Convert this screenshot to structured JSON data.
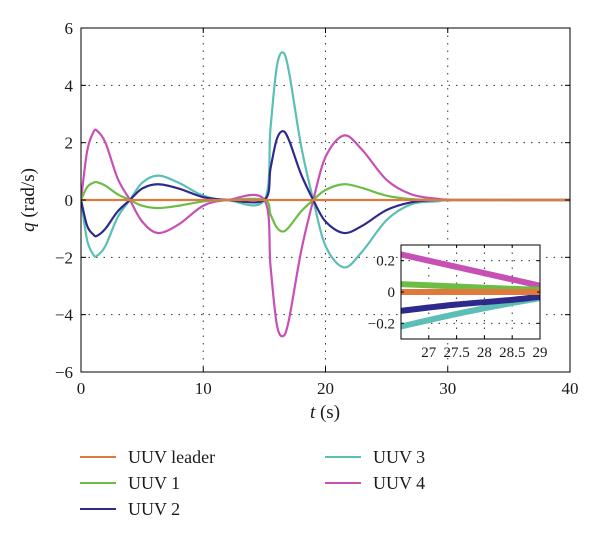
{
  "chart_data": [
    {
      "type": "line",
      "title": "",
      "xlabel": "t (s)",
      "xlabel_italic": "t",
      "xlabel_unit": "(s)",
      "ylabel": "q (rad/s)",
      "ylabel_italic": "q",
      "ylabel_unit": "(rad/s)",
      "xlim": [
        0,
        40
      ],
      "ylim": [
        -6,
        6
      ],
      "xticks": [
        0,
        10,
        20,
        30,
        40
      ],
      "yticks": [
        -6,
        -4,
        -2,
        0,
        2,
        4,
        6
      ],
      "xtick_labels": [
        "0",
        "10",
        "20",
        "30",
        "40"
      ],
      "ytick_labels": [
        "−6",
        "−4",
        "−2",
        "0",
        "2",
        "4",
        "6"
      ],
      "grid": true,
      "legend_position": "bottom",
      "series": [
        {
          "name": "UUV leader",
          "color": "#e07a3c",
          "x": [
            0,
            40
          ],
          "y": [
            0,
            0
          ]
        },
        {
          "name": "UUV 1",
          "color": "#6cbd45",
          "x": [
            0,
            0.5,
            1,
            1.3,
            2,
            3,
            4,
            5,
            6.3,
            8,
            10,
            12,
            15,
            15.5,
            16,
            16.5,
            17,
            18,
            19,
            20,
            21.5,
            23,
            25,
            27,
            29,
            31,
            40
          ],
          "y": [
            0,
            0.45,
            0.6,
            0.62,
            0.5,
            0.2,
            0,
            -0.2,
            -0.28,
            -0.2,
            -0.05,
            0,
            0,
            -0.5,
            -0.95,
            -1.1,
            -0.95,
            -0.4,
            0,
            0.35,
            0.55,
            0.42,
            0.15,
            0.03,
            0,
            0,
            0
          ]
        },
        {
          "name": "UUV 2",
          "color": "#2e2a8c",
          "x": [
            0,
            0.5,
            1,
            1.3,
            2,
            3,
            4,
            5,
            6.3,
            8,
            10,
            12,
            15,
            15.5,
            16,
            16.5,
            17,
            18,
            19,
            20,
            21.5,
            23,
            25,
            27,
            29,
            31,
            40
          ],
          "y": [
            0,
            -0.9,
            -1.2,
            -1.25,
            -1.0,
            -0.4,
            0,
            0.4,
            0.55,
            0.4,
            0.1,
            0,
            0,
            1.1,
            2.1,
            2.4,
            2.1,
            0.9,
            0,
            -0.75,
            -1.15,
            -0.9,
            -0.35,
            -0.08,
            0,
            0,
            0
          ]
        },
        {
          "name": "UUV 3",
          "color": "#5cbfb6",
          "x": [
            0,
            0.5,
            1,
            1.3,
            2,
            3,
            4,
            5,
            6.3,
            8,
            10,
            12,
            15,
            15.5,
            16,
            16.5,
            17,
            18,
            19,
            20,
            21.5,
            23,
            25,
            27,
            29,
            31,
            40
          ],
          "y": [
            0,
            -1.4,
            -1.9,
            -1.95,
            -1.6,
            -0.6,
            0,
            0.6,
            0.85,
            0.6,
            0.15,
            0,
            0,
            2.5,
            4.6,
            5.15,
            4.5,
            1.9,
            0,
            -1.6,
            -2.35,
            -1.8,
            -0.7,
            -0.15,
            -0.05,
            0,
            0
          ]
        },
        {
          "name": "UUV 4",
          "color": "#c750b4",
          "x": [
            0,
            0.5,
            1,
            1.3,
            2,
            3,
            4,
            5,
            6.3,
            8,
            10,
            12,
            15,
            15.5,
            16,
            16.5,
            17,
            18,
            19,
            20,
            21.5,
            23,
            25,
            27,
            29,
            31,
            40
          ],
          "y": [
            0,
            1.7,
            2.35,
            2.42,
            2.0,
            0.75,
            0,
            -0.75,
            -1.15,
            -0.85,
            -0.2,
            0,
            0,
            -2.3,
            -4.3,
            -4.75,
            -4.2,
            -1.8,
            0,
            1.5,
            2.25,
            1.75,
            0.7,
            0.2,
            0.05,
            0,
            0
          ]
        }
      ]
    },
    {
      "type": "line",
      "title": "inset",
      "xlim": [
        26.5,
        29
      ],
      "ylim": [
        -0.3,
        0.3
      ],
      "xticks": [
        27,
        27.5,
        28,
        28.5,
        29
      ],
      "yticks": [
        -0.2,
        0,
        0.2
      ],
      "xtick_labels": [
        "27",
        "27.5",
        "28",
        "28.5",
        "29"
      ],
      "ytick_labels": [
        "−0.2",
        "0",
        "0.2"
      ],
      "grid": true,
      "series": [
        {
          "name": "UUV leader",
          "color": "#e07a3c",
          "x": [
            26.5,
            29
          ],
          "y": [
            0,
            0
          ]
        },
        {
          "name": "UUV 1",
          "color": "#6cbd45",
          "x": [
            26.5,
            27.5,
            28.5,
            29
          ],
          "y": [
            0.05,
            0.035,
            0.02,
            0.015
          ]
        },
        {
          "name": "UUV 2",
          "color": "#2e2a8c",
          "x": [
            26.5,
            27.5,
            28.5,
            29
          ],
          "y": [
            -0.12,
            -0.08,
            -0.05,
            -0.03
          ]
        },
        {
          "name": "UUV 3",
          "color": "#5cbfb6",
          "x": [
            26.5,
            27.5,
            28.5,
            29
          ],
          "y": [
            -0.22,
            -0.14,
            -0.07,
            -0.04
          ]
        },
        {
          "name": "UUV 4",
          "color": "#c750b4",
          "x": [
            26.5,
            27.5,
            28.5,
            29
          ],
          "y": [
            0.24,
            0.16,
            0.08,
            0.04
          ]
        }
      ]
    }
  ]
}
